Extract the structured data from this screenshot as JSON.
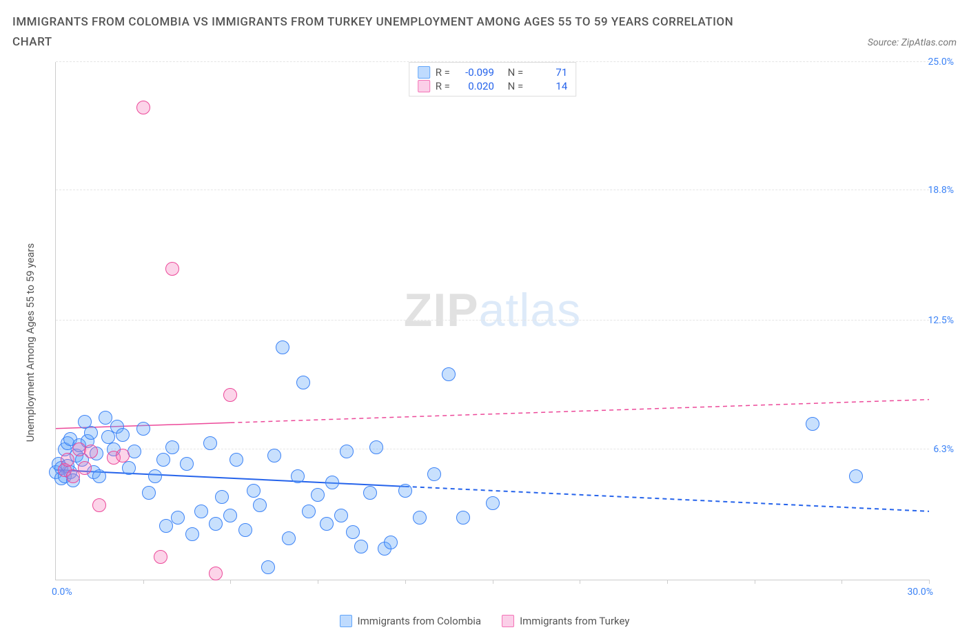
{
  "title_line1": "IMMIGRANTS FROM COLOMBIA VS IMMIGRANTS FROM TURKEY UNEMPLOYMENT AMONG AGES 55 TO 59 YEARS CORRELATION",
  "title_line2": "CHART",
  "source_prefix": "Source: ",
  "source_name": "ZipAtlas.com",
  "y_axis_title": "Unemployment Among Ages 55 to 59 years",
  "watermark_a": "ZIP",
  "watermark_b": "atlas",
  "chart": {
    "xlim": [
      0,
      30
    ],
    "ylim": [
      0,
      25
    ],
    "x_labels": [
      {
        "v": 0,
        "text": "0.0%"
      },
      {
        "v": 30,
        "text": "30.0%"
      }
    ],
    "x_ticks": [
      3,
      6,
      9,
      12,
      15,
      18,
      21,
      24,
      27,
      30
    ],
    "y_gridlines": [
      6.3,
      12.5,
      18.8,
      25.0
    ],
    "y_right_labels": [
      {
        "v": 6.3,
        "text": "6.3%"
      },
      {
        "v": 12.5,
        "text": "12.5%"
      },
      {
        "v": 18.8,
        "text": "18.8%"
      },
      {
        "v": 25.0,
        "text": "25.0%"
      }
    ],
    "series": [
      {
        "name": "Immigrants from Colombia",
        "key": "colombia",
        "fill": "rgba(96,165,250,0.35)",
        "stroke": "#3b82f6",
        "swatch_fill": "#bfdbfe",
        "swatch_border": "#60a5fa",
        "r": -0.099,
        "n": 71,
        "marker_radius": 10,
        "trend": {
          "x1": 0,
          "y1": 5.3,
          "x2": 30,
          "y2": 3.3,
          "solid_until_x": 12,
          "color": "#2563eb",
          "width": 2
        },
        "points": [
          [
            0.0,
            5.2
          ],
          [
            0.1,
            5.6
          ],
          [
            0.2,
            4.9
          ],
          [
            0.2,
            5.4
          ],
          [
            0.3,
            6.3
          ],
          [
            0.3,
            5.0
          ],
          [
            0.4,
            6.6
          ],
          [
            0.4,
            5.5
          ],
          [
            0.5,
            5.2
          ],
          [
            0.5,
            6.8
          ],
          [
            0.6,
            4.8
          ],
          [
            0.7,
            6.0
          ],
          [
            0.8,
            6.5
          ],
          [
            0.9,
            5.8
          ],
          [
            1.0,
            7.6
          ],
          [
            1.1,
            6.7
          ],
          [
            1.2,
            7.1
          ],
          [
            1.3,
            5.2
          ],
          [
            1.4,
            6.1
          ],
          [
            1.5,
            5.0
          ],
          [
            1.7,
            7.8
          ],
          [
            1.8,
            6.9
          ],
          [
            2.0,
            6.3
          ],
          [
            2.1,
            7.4
          ],
          [
            2.3,
            7.0
          ],
          [
            2.5,
            5.4
          ],
          [
            2.7,
            6.2
          ],
          [
            3.0,
            7.3
          ],
          [
            3.2,
            4.2
          ],
          [
            3.4,
            5.0
          ],
          [
            3.7,
            5.8
          ],
          [
            3.8,
            2.6
          ],
          [
            4.0,
            6.4
          ],
          [
            4.2,
            3.0
          ],
          [
            4.5,
            5.6
          ],
          [
            4.7,
            2.2
          ],
          [
            5.0,
            3.3
          ],
          [
            5.3,
            6.6
          ],
          [
            5.5,
            2.7
          ],
          [
            5.7,
            4.0
          ],
          [
            6.0,
            3.1
          ],
          [
            6.2,
            5.8
          ],
          [
            6.5,
            2.4
          ],
          [
            6.8,
            4.3
          ],
          [
            7.0,
            3.6
          ],
          [
            7.3,
            0.6
          ],
          [
            7.5,
            6.0
          ],
          [
            7.8,
            11.2
          ],
          [
            8.0,
            2.0
          ],
          [
            8.3,
            5.0
          ],
          [
            8.5,
            9.5
          ],
          [
            8.7,
            3.3
          ],
          [
            9.0,
            4.1
          ],
          [
            9.3,
            2.7
          ],
          [
            9.5,
            4.7
          ],
          [
            9.8,
            3.1
          ],
          [
            10.0,
            6.2
          ],
          [
            10.2,
            2.3
          ],
          [
            10.5,
            1.6
          ],
          [
            10.8,
            4.2
          ],
          [
            11.0,
            6.4
          ],
          [
            11.3,
            1.5
          ],
          [
            11.5,
            1.8
          ],
          [
            12.0,
            4.3
          ],
          [
            12.5,
            3.0
          ],
          [
            13.0,
            5.1
          ],
          [
            13.5,
            9.9
          ],
          [
            14.0,
            3.0
          ],
          [
            15.0,
            3.7
          ],
          [
            26.0,
            7.5
          ],
          [
            27.5,
            5.0
          ]
        ]
      },
      {
        "name": "Immigrants from Turkey",
        "key": "turkey",
        "fill": "rgba(244,114,182,0.30)",
        "stroke": "#ec4899",
        "swatch_fill": "#fbcfe8",
        "swatch_border": "#f472b6",
        "r": 0.02,
        "n": 14,
        "marker_radius": 10,
        "trend": {
          "x1": 0,
          "y1": 7.3,
          "x2": 30,
          "y2": 8.7,
          "solid_until_x": 6,
          "color": "#ec4899",
          "width": 1.5
        },
        "points": [
          [
            0.3,
            5.3
          ],
          [
            0.4,
            5.8
          ],
          [
            0.6,
            5.0
          ],
          [
            0.8,
            6.3
          ],
          [
            1.0,
            5.4
          ],
          [
            1.2,
            6.2
          ],
          [
            1.5,
            3.6
          ],
          [
            2.0,
            5.9
          ],
          [
            2.3,
            6.0
          ],
          [
            3.0,
            22.8
          ],
          [
            3.6,
            1.1
          ],
          [
            4.0,
            15.0
          ],
          [
            5.5,
            0.3
          ],
          [
            6.0,
            8.9
          ]
        ]
      }
    ],
    "legend_top": {
      "r_label": "R =",
      "n_label": "N =",
      "r_values": [
        "-0.099",
        "0.020"
      ],
      "n_values": [
        "71",
        "14"
      ]
    }
  }
}
